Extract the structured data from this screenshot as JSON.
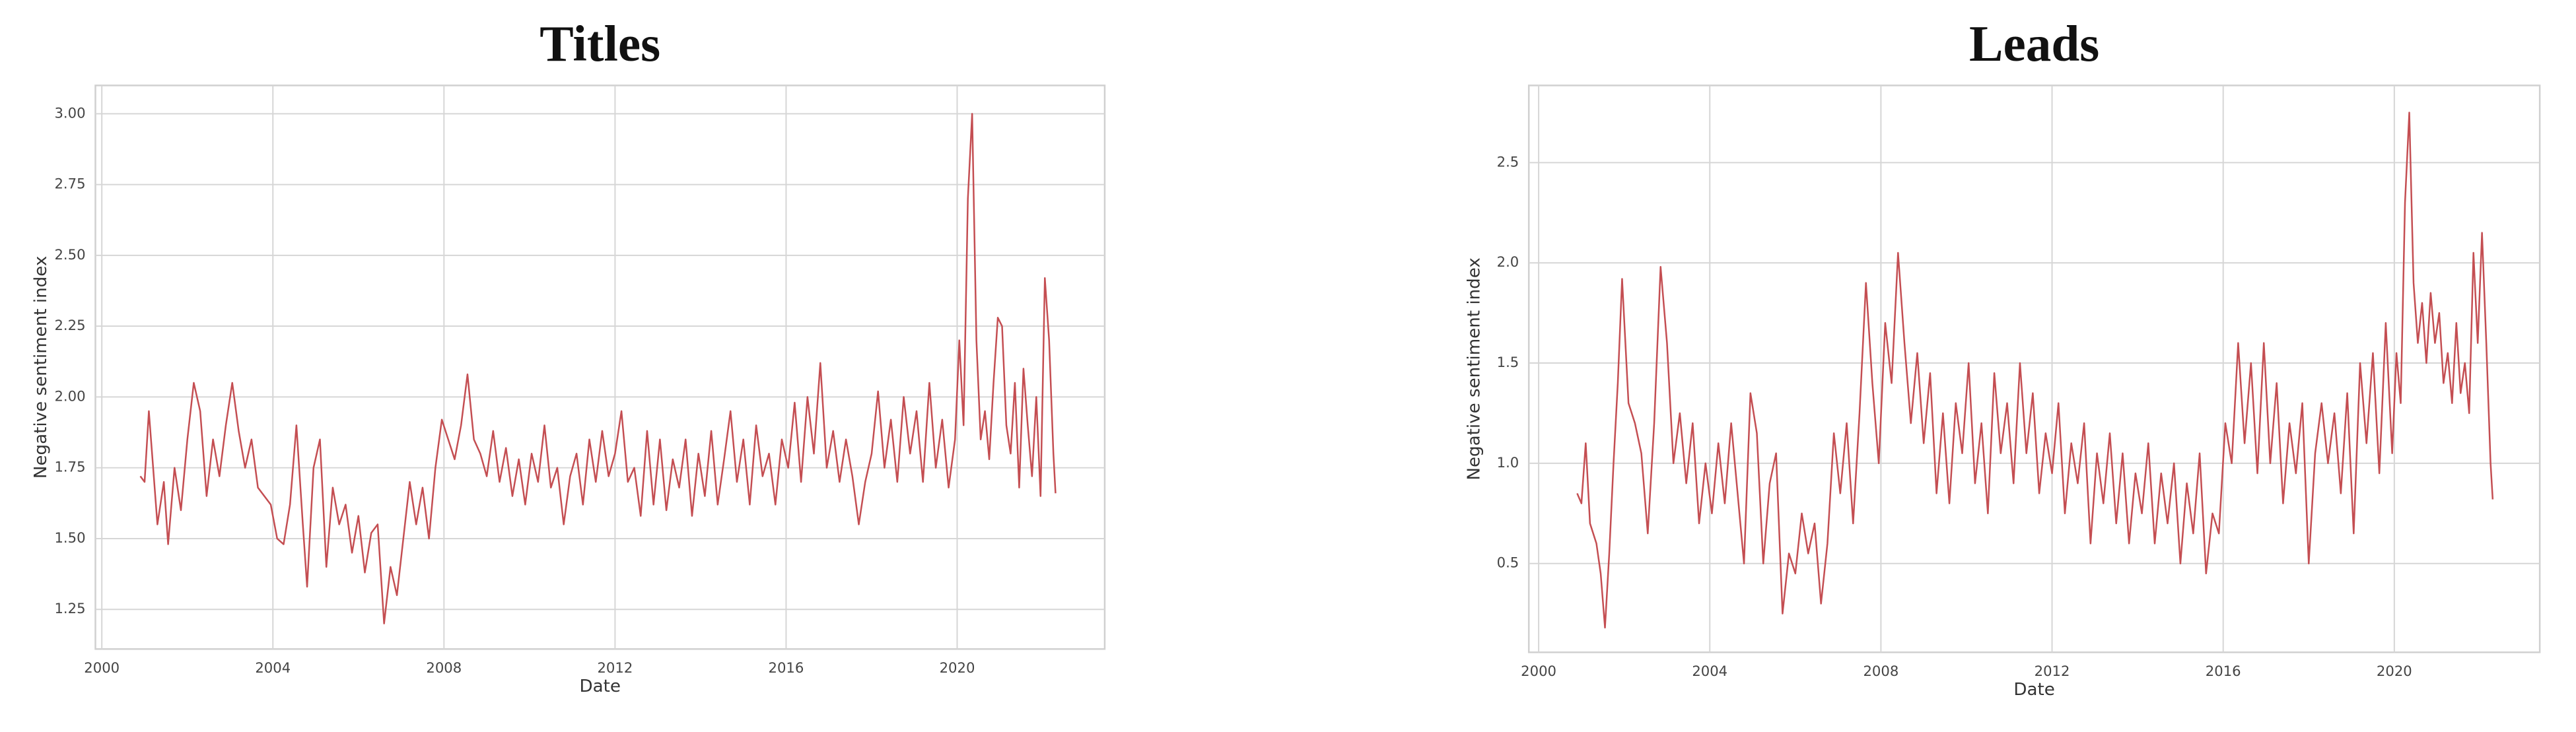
{
  "chart_data": [
    {
      "type": "line",
      "title": "Titles",
      "xlabel": "Date",
      "ylabel": "Negative sentiment index",
      "color": "#c44e52",
      "grid": true,
      "xlim": [
        1999.85,
        2023.45
      ],
      "xticks": [
        2000,
        2004,
        2008,
        2012,
        2016,
        2020
      ],
      "ylim": [
        1.11,
        3.1
      ],
      "yticks": [
        1.25,
        {
          "value": 1.5,
          "label": "1.50"
        },
        1.75,
        {
          "value": 2,
          "label": "2.00"
        },
        2.25,
        {
          "value": 2.5,
          "label": "2.50"
        },
        2.75,
        {
          "value": 3,
          "label": "3.00"
        }
      ],
      "x": [
        2000.9,
        2001.0,
        2001.1,
        2001.2,
        2001.3,
        2001.45,
        2001.55,
        2001.7,
        2001.85,
        2002.0,
        2002.15,
        2002.3,
        2002.45,
        2002.6,
        2002.75,
        2002.9,
        2003.05,
        2003.2,
        2003.35,
        2003.5,
        2003.65,
        2003.8,
        2003.95,
        2004.1,
        2004.25,
        2004.4,
        2004.55,
        2004.7,
        2004.8,
        2004.95,
        2005.1,
        2005.25,
        2005.4,
        2005.55,
        2005.7,
        2005.85,
        2006.0,
        2006.15,
        2006.3,
        2006.45,
        2006.6,
        2006.75,
        2006.9,
        2007.05,
        2007.2,
        2007.35,
        2007.5,
        2007.65,
        2007.8,
        2007.95,
        2008.1,
        2008.25,
        2008.4,
        2008.55,
        2008.7,
        2008.85,
        2009.0,
        2009.15,
        2009.3,
        2009.45,
        2009.6,
        2009.75,
        2009.9,
        2010.05,
        2010.2,
        2010.35,
        2010.5,
        2010.65,
        2010.8,
        2010.95,
        2011.1,
        2011.25,
        2011.4,
        2011.55,
        2011.7,
        2011.85,
        2012.0,
        2012.15,
        2012.3,
        2012.45,
        2012.6,
        2012.75,
        2012.9,
        2013.05,
        2013.2,
        2013.35,
        2013.5,
        2013.65,
        2013.8,
        2013.95,
        2014.1,
        2014.25,
        2014.4,
        2014.55,
        2014.7,
        2014.85,
        2015.0,
        2015.15,
        2015.3,
        2015.45,
        2015.6,
        2015.75,
        2015.9,
        2016.05,
        2016.2,
        2016.35,
        2016.5,
        2016.65,
        2016.8,
        2016.95,
        2017.1,
        2017.25,
        2017.4,
        2017.55,
        2017.7,
        2017.85,
        2018.0,
        2018.15,
        2018.3,
        2018.45,
        2018.6,
        2018.75,
        2018.9,
        2019.05,
        2019.2,
        2019.35,
        2019.5,
        2019.65,
        2019.8,
        2019.95,
        2020.05,
        2020.15,
        2020.25,
        2020.35,
        2020.45,
        2020.55,
        2020.65,
        2020.75,
        2020.85,
        2020.95,
        2021.05,
        2021.15,
        2021.25,
        2021.35,
        2021.45,
        2021.55,
        2021.65,
        2021.75,
        2021.85,
        2021.95,
        2022.05,
        2022.15,
        2022.25,
        2022.3
      ],
      "values": [
        1.72,
        1.7,
        1.95,
        1.75,
        1.55,
        1.7,
        1.48,
        1.75,
        1.6,
        1.85,
        2.05,
        1.95,
        1.65,
        1.85,
        1.72,
        1.9,
        2.05,
        1.88,
        1.75,
        1.85,
        1.68,
        1.65,
        1.62,
        1.5,
        1.48,
        1.62,
        1.9,
        1.55,
        1.33,
        1.75,
        1.85,
        1.4,
        1.68,
        1.55,
        1.62,
        1.45,
        1.58,
        1.38,
        1.52,
        1.55,
        1.2,
        1.4,
        1.3,
        1.5,
        1.7,
        1.55,
        1.68,
        1.5,
        1.75,
        1.92,
        1.85,
        1.78,
        1.9,
        2.08,
        1.85,
        1.8,
        1.72,
        1.88,
        1.7,
        1.82,
        1.65,
        1.78,
        1.62,
        1.8,
        1.7,
        1.9,
        1.68,
        1.75,
        1.55,
        1.72,
        1.8,
        1.62,
        1.85,
        1.7,
        1.88,
        1.72,
        1.8,
        1.95,
        1.7,
        1.75,
        1.58,
        1.88,
        1.62,
        1.85,
        1.6,
        1.78,
        1.68,
        1.85,
        1.58,
        1.8,
        1.65,
        1.88,
        1.62,
        1.78,
        1.95,
        1.7,
        1.85,
        1.62,
        1.9,
        1.72,
        1.8,
        1.62,
        1.85,
        1.75,
        1.98,
        1.7,
        2.0,
        1.8,
        2.12,
        1.75,
        1.88,
        1.7,
        1.85,
        1.72,
        1.55,
        1.7,
        1.8,
        2.02,
        1.75,
        1.92,
        1.7,
        2.0,
        1.8,
        1.95,
        1.7,
        2.05,
        1.75,
        1.92,
        1.68,
        1.85,
        2.2,
        1.9,
        2.7,
        3.0,
        2.2,
        1.85,
        1.95,
        1.78,
        2.05,
        2.28,
        2.25,
        1.9,
        1.8,
        2.05,
        1.68,
        2.1,
        1.9,
        1.72,
        2.0,
        1.65,
        2.42,
        2.2,
        1.8,
        1.66
      ]
    },
    {
      "type": "line",
      "title": "Leads",
      "xlabel": "Date",
      "ylabel": "Negative sentiment index",
      "color": "#c44e52",
      "grid": true,
      "xlim": [
        1999.77,
        2023.4
      ],
      "xticks": [
        2000,
        2004,
        2008,
        2012,
        2016,
        2020
      ],
      "ylim": [
        0.057,
        2.885
      ],
      "yticks": [
        0.5,
        {
          "value": 1,
          "label": "1.0"
        },
        1.5,
        {
          "value": 2,
          "label": "2.0"
        },
        2.5
      ],
      "x": [
        2000.9,
        2001.0,
        2001.1,
        2001.2,
        2001.35,
        2001.45,
        2001.55,
        2001.65,
        2001.75,
        2001.85,
        2001.95,
        2002.1,
        2002.25,
        2002.4,
        2002.55,
        2002.7,
        2002.85,
        2003.0,
        2003.15,
        2003.3,
        2003.45,
        2003.6,
        2003.75,
        2003.9,
        2004.05,
        2004.2,
        2004.35,
        2004.5,
        2004.65,
        2004.8,
        2004.95,
        2005.1,
        2005.25,
        2005.4,
        2005.55,
        2005.7,
        2005.85,
        2006.0,
        2006.15,
        2006.3,
        2006.45,
        2006.6,
        2006.75,
        2006.9,
        2007.05,
        2007.2,
        2007.35,
        2007.5,
        2007.65,
        2007.8,
        2007.95,
        2008.1,
        2008.25,
        2008.4,
        2008.55,
        2008.7,
        2008.85,
        2009.0,
        2009.15,
        2009.3,
        2009.45,
        2009.6,
        2009.75,
        2009.9,
        2010.05,
        2010.2,
        2010.35,
        2010.5,
        2010.65,
        2010.8,
        2010.95,
        2011.1,
        2011.25,
        2011.4,
        2011.55,
        2011.7,
        2011.85,
        2012.0,
        2012.15,
        2012.3,
        2012.45,
        2012.6,
        2012.75,
        2012.9,
        2013.05,
        2013.2,
        2013.35,
        2013.5,
        2013.65,
        2013.8,
        2013.95,
        2014.1,
        2014.25,
        2014.4,
        2014.55,
        2014.7,
        2014.85,
        2015.0,
        2015.15,
        2015.3,
        2015.45,
        2015.6,
        2015.75,
        2015.9,
        2016.05,
        2016.2,
        2016.35,
        2016.5,
        2016.65,
        2016.8,
        2016.95,
        2017.1,
        2017.25,
        2017.4,
        2017.55,
        2017.7,
        2017.85,
        2018.0,
        2018.15,
        2018.3,
        2018.45,
        2018.6,
        2018.75,
        2018.9,
        2019.05,
        2019.2,
        2019.35,
        2019.5,
        2019.65,
        2019.8,
        2019.95,
        2020.05,
        2020.15,
        2020.25,
        2020.35,
        2020.45,
        2020.55,
        2020.65,
        2020.75,
        2020.85,
        2020.95,
        2021.05,
        2021.15,
        2021.25,
        2021.35,
        2021.45,
        2021.55,
        2021.65,
        2021.75,
        2021.85,
        2021.95,
        2022.05,
        2022.15,
        2022.25,
        2022.3
      ],
      "values": [
        0.85,
        0.8,
        1.1,
        0.7,
        0.6,
        0.45,
        0.18,
        0.55,
        1.0,
        1.4,
        1.92,
        1.3,
        1.2,
        1.05,
        0.65,
        1.2,
        1.98,
        1.6,
        1.0,
        1.25,
        0.9,
        1.2,
        0.7,
        1.0,
        0.75,
        1.1,
        0.8,
        1.2,
        0.85,
        0.5,
        1.35,
        1.15,
        0.5,
        0.9,
        1.05,
        0.25,
        0.55,
        0.45,
        0.75,
        0.55,
        0.7,
        0.3,
        0.6,
        1.15,
        0.85,
        1.2,
        0.7,
        1.25,
        1.9,
        1.4,
        1.0,
        1.7,
        1.4,
        2.05,
        1.6,
        1.2,
        1.55,
        1.1,
        1.45,
        0.85,
        1.25,
        0.8,
        1.3,
        1.05,
        1.5,
        0.9,
        1.2,
        0.75,
        1.45,
        1.05,
        1.3,
        0.9,
        1.5,
        1.05,
        1.35,
        0.85,
        1.15,
        0.95,
        1.3,
        0.75,
        1.1,
        0.9,
        1.2,
        0.6,
        1.05,
        0.8,
        1.15,
        0.7,
        1.05,
        0.6,
        0.95,
        0.75,
        1.1,
        0.6,
        0.95,
        0.7,
        1.0,
        0.5,
        0.9,
        0.65,
        1.05,
        0.45,
        0.75,
        0.65,
        1.2,
        1.0,
        1.6,
        1.1,
        1.5,
        0.95,
        1.6,
        1.0,
        1.4,
        0.8,
        1.2,
        0.95,
        1.3,
        0.5,
        1.05,
        1.3,
        1.0,
        1.25,
        0.85,
        1.35,
        0.65,
        1.5,
        1.1,
        1.55,
        0.95,
        1.7,
        1.05,
        1.55,
        1.3,
        2.3,
        2.75,
        1.9,
        1.6,
        1.8,
        1.5,
        1.85,
        1.6,
        1.75,
        1.4,
        1.55,
        1.3,
        1.7,
        1.35,
        1.5,
        1.25,
        2.05,
        1.6,
        2.15,
        1.6,
        1.0,
        0.82
      ]
    }
  ]
}
